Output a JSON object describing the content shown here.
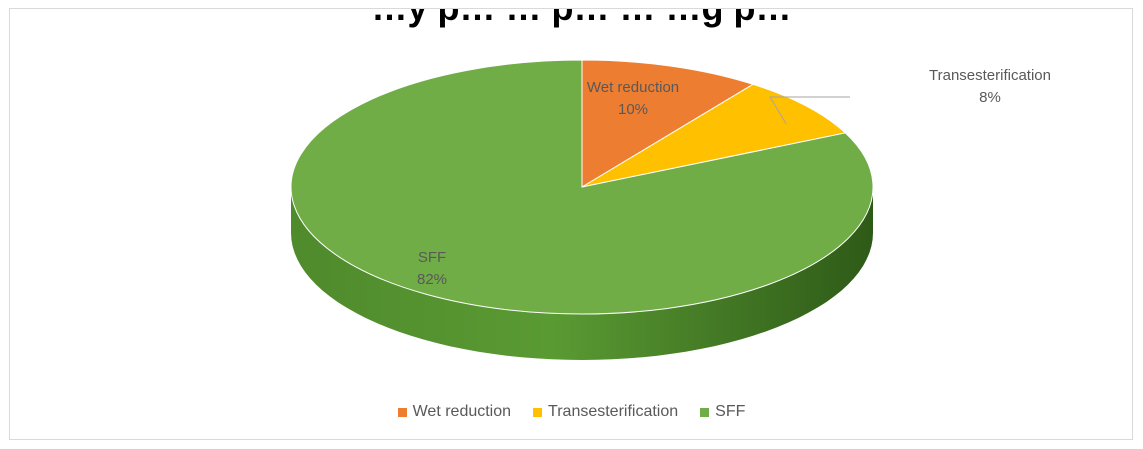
{
  "chart_data": {
    "type": "pie",
    "style": "3d",
    "title": "",
    "categories": [
      "Wet reduction",
      "Transesterification",
      "SFF"
    ],
    "values": [
      10,
      8,
      82
    ],
    "value_labels": [
      "10%",
      "8%",
      "82%"
    ],
    "colors": [
      "#ed7d31",
      "#ffc000",
      "#70ad47"
    ],
    "legend_position": "bottom"
  },
  "title_fragment": "…y p… … p… … …g p…"
}
